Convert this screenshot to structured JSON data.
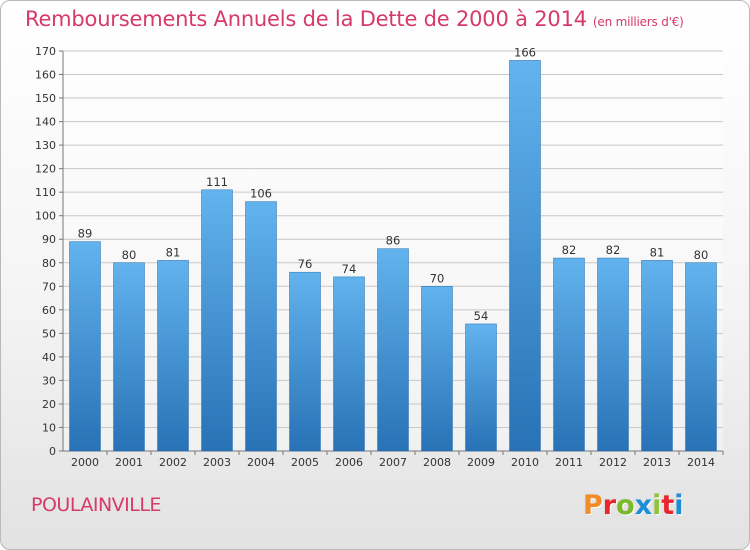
{
  "chart_data": {
    "type": "bar",
    "title": "Remboursements Annuels de la Dette de 2000 à 2014",
    "subtitle": "(en milliers d'€)",
    "categories": [
      "2000",
      "2001",
      "2002",
      "2003",
      "2004",
      "2005",
      "2006",
      "2007",
      "2008",
      "2009",
      "2010",
      "2011",
      "2012",
      "2013",
      "2014"
    ],
    "values": [
      89,
      80,
      81,
      111,
      106,
      76,
      74,
      86,
      70,
      54,
      166,
      82,
      82,
      81,
      80
    ],
    "ylim": [
      0,
      170
    ],
    "yticks": [
      0,
      10,
      20,
      30,
      40,
      50,
      60,
      70,
      80,
      90,
      100,
      110,
      120,
      130,
      140,
      150,
      160,
      170
    ],
    "grid": true,
    "bar_color": "#3d8fd6"
  },
  "footer": {
    "commune": "POULAINVILLE",
    "logo_text": "Proxiti"
  },
  "colors": {
    "title": "#d63a67",
    "logo": [
      "#f28c28",
      "#e8262b",
      "#7ab929",
      "#1e8fd6",
      "#8fc43f",
      "#e8262b",
      "#1e8fd6"
    ]
  }
}
